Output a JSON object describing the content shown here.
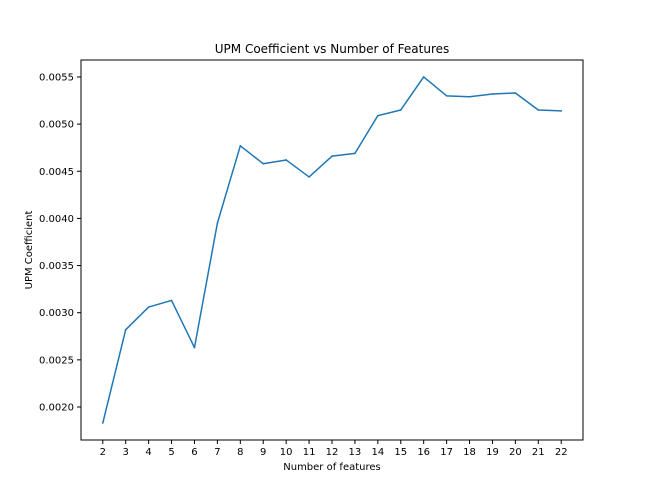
{
  "chart_data": {
    "type": "line",
    "title": "UPM Coefficient vs Number of Features",
    "xlabel": "Number of features",
    "ylabel": "UPM Coefficient",
    "x": [
      2,
      3,
      4,
      5,
      6,
      7,
      8,
      9,
      10,
      11,
      12,
      13,
      14,
      15,
      16,
      17,
      18,
      19,
      20,
      21,
      22
    ],
    "series": [
      {
        "values": [
          0.00183,
          0.00282,
          0.00306,
          0.00313,
          0.00263,
          0.00395,
          0.00477,
          0.00458,
          0.00462,
          0.00444,
          0.00466,
          0.00469,
          0.00509,
          0.00515,
          0.0055,
          0.0053,
          0.00529,
          0.00532,
          0.00533,
          0.00515,
          0.00514
        ],
        "color": "#1f77b4"
      }
    ],
    "xlim": [
      1.05,
      22.95
    ],
    "ylim": [
      0.00165,
      0.00568
    ],
    "xticks": [
      2,
      3,
      4,
      5,
      6,
      7,
      8,
      9,
      10,
      11,
      12,
      13,
      14,
      15,
      16,
      17,
      18,
      19,
      20,
      21,
      22
    ],
    "xtick_labels": [
      "2",
      "3",
      "4",
      "5",
      "6",
      "7",
      "8",
      "9",
      "10",
      "11",
      "12",
      "13",
      "14",
      "15",
      "16",
      "17",
      "18",
      "19",
      "20",
      "21",
      "22"
    ],
    "yticks": [
      0.002,
      0.0025,
      0.003,
      0.0035,
      0.004,
      0.0045,
      0.005,
      0.0055
    ],
    "ytick_labels": [
      "0.0020",
      "0.0025",
      "0.0030",
      "0.0035",
      "0.0040",
      "0.0045",
      "0.0050",
      "0.0055"
    ],
    "grid": false,
    "legend": false
  }
}
